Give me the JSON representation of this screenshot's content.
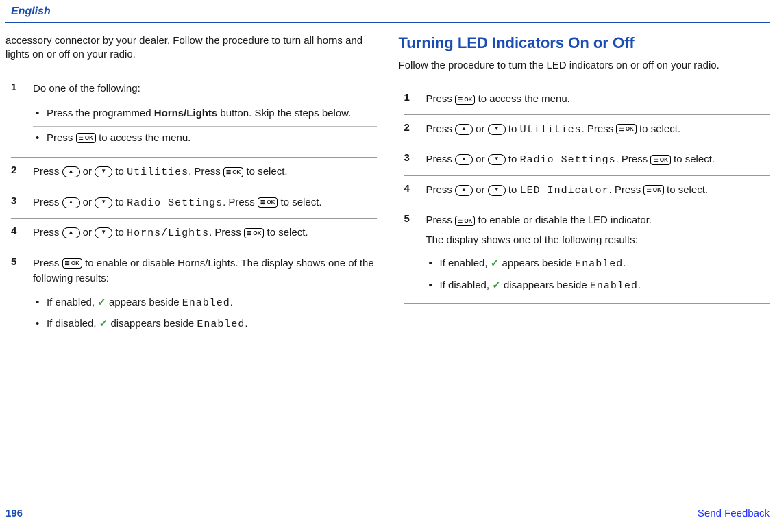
{
  "header": {
    "language": "English"
  },
  "footer": {
    "page": "196",
    "feedback": "Send Feedback"
  },
  "left": {
    "intro": "accessory connector by your dealer. Follow the procedure to turn all horns and lights on or off on your radio.",
    "step1": {
      "text": "Do one of the following:",
      "bullet1_a": "Press the programmed ",
      "bullet1_b": "Horns/Lights",
      "bullet1_c": " button. Skip the steps below.",
      "bullet2_a": "Press ",
      "bullet2_b": " to access the menu."
    },
    "step2": {
      "a": "Press ",
      "b": " or ",
      "c": " to ",
      "menu": "Utilities",
      "d": ". Press ",
      "e": " to select."
    },
    "step3": {
      "a": "Press ",
      "b": " or ",
      "c": " to ",
      "menu": "Radio Settings",
      "d": ". Press ",
      "e": " to select."
    },
    "step4": {
      "a": "Press ",
      "b": " or ",
      "c": " to ",
      "menu": "Horns/Lights",
      "d": ". Press ",
      "e": " to select."
    },
    "step5": {
      "a": "Press ",
      "b": " to enable or disable Horns/Lights. The display shows one of the following results:",
      "enabled_a": "If enabled, ",
      "enabled_b": " appears beside ",
      "enabled_menu": "Enabled",
      "enabled_c": ".",
      "disabled_a": "If disabled, ",
      "disabled_b": " disappears beside ",
      "disabled_menu": "Enabled",
      "disabled_c": "."
    }
  },
  "right": {
    "title": "Turning LED Indicators On or Off",
    "intro": "Follow the procedure to turn the LED indicators on or off on your radio.",
    "step1": {
      "a": "Press ",
      "b": " to access the menu."
    },
    "step2": {
      "a": "Press ",
      "b": " or ",
      "c": " to ",
      "menu": "Utilities",
      "d": ". Press ",
      "e": " to select."
    },
    "step3": {
      "a": "Press ",
      "b": " or ",
      "c": " to ",
      "menu": "Radio Settings",
      "d": ". Press ",
      "e": " to select."
    },
    "step4": {
      "a": "Press ",
      "b": " or ",
      "c": " to ",
      "menu": "LED Indicator",
      "d": ". Press ",
      "e": " to select."
    },
    "step5": {
      "a": "Press ",
      "b": " to enable or disable the LED indicator.",
      "results_intro": "The display shows one of the following results:",
      "enabled_a": "If enabled, ",
      "enabled_b": " appears beside ",
      "enabled_menu": "Enabled",
      "enabled_c": ".",
      "disabled_a": "If disabled, ",
      "disabled_b": " disappears beside ",
      "disabled_menu": "Enabled",
      "disabled_c": "."
    }
  },
  "icons": {
    "check": "✓"
  }
}
